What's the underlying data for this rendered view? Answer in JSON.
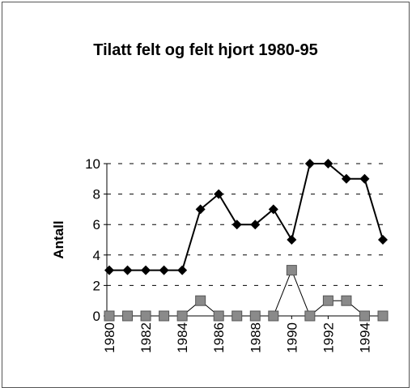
{
  "chart_data": {
    "type": "line",
    "title": "Tilatt felt og felt hjort 1980-95",
    "y_label": "Antall",
    "x": [
      1980,
      1981,
      1982,
      1983,
      1984,
      1985,
      1986,
      1987,
      1988,
      1989,
      1990,
      1991,
      1992,
      1993,
      1994,
      1995
    ],
    "xlim": [
      1980,
      1995
    ],
    "xticks": [
      1980,
      1982,
      1984,
      1986,
      1988,
      1990,
      1992,
      1994
    ],
    "ylim": [
      0,
      10
    ],
    "yticks": [
      0,
      2,
      4,
      6,
      8,
      10
    ],
    "grid": true,
    "series": [
      {
        "color": "#000000",
        "marker": "diamond",
        "values": [
          3,
          3,
          3,
          3,
          3,
          7,
          8,
          6,
          6,
          7,
          5,
          10,
          10,
          9,
          9,
          5
        ]
      },
      {
        "color": "#8a8a8a",
        "marker": "square",
        "values": [
          0,
          0,
          0,
          0,
          0,
          1,
          0,
          0,
          0,
          0,
          3,
          0,
          1,
          1,
          0,
          0
        ]
      }
    ]
  }
}
